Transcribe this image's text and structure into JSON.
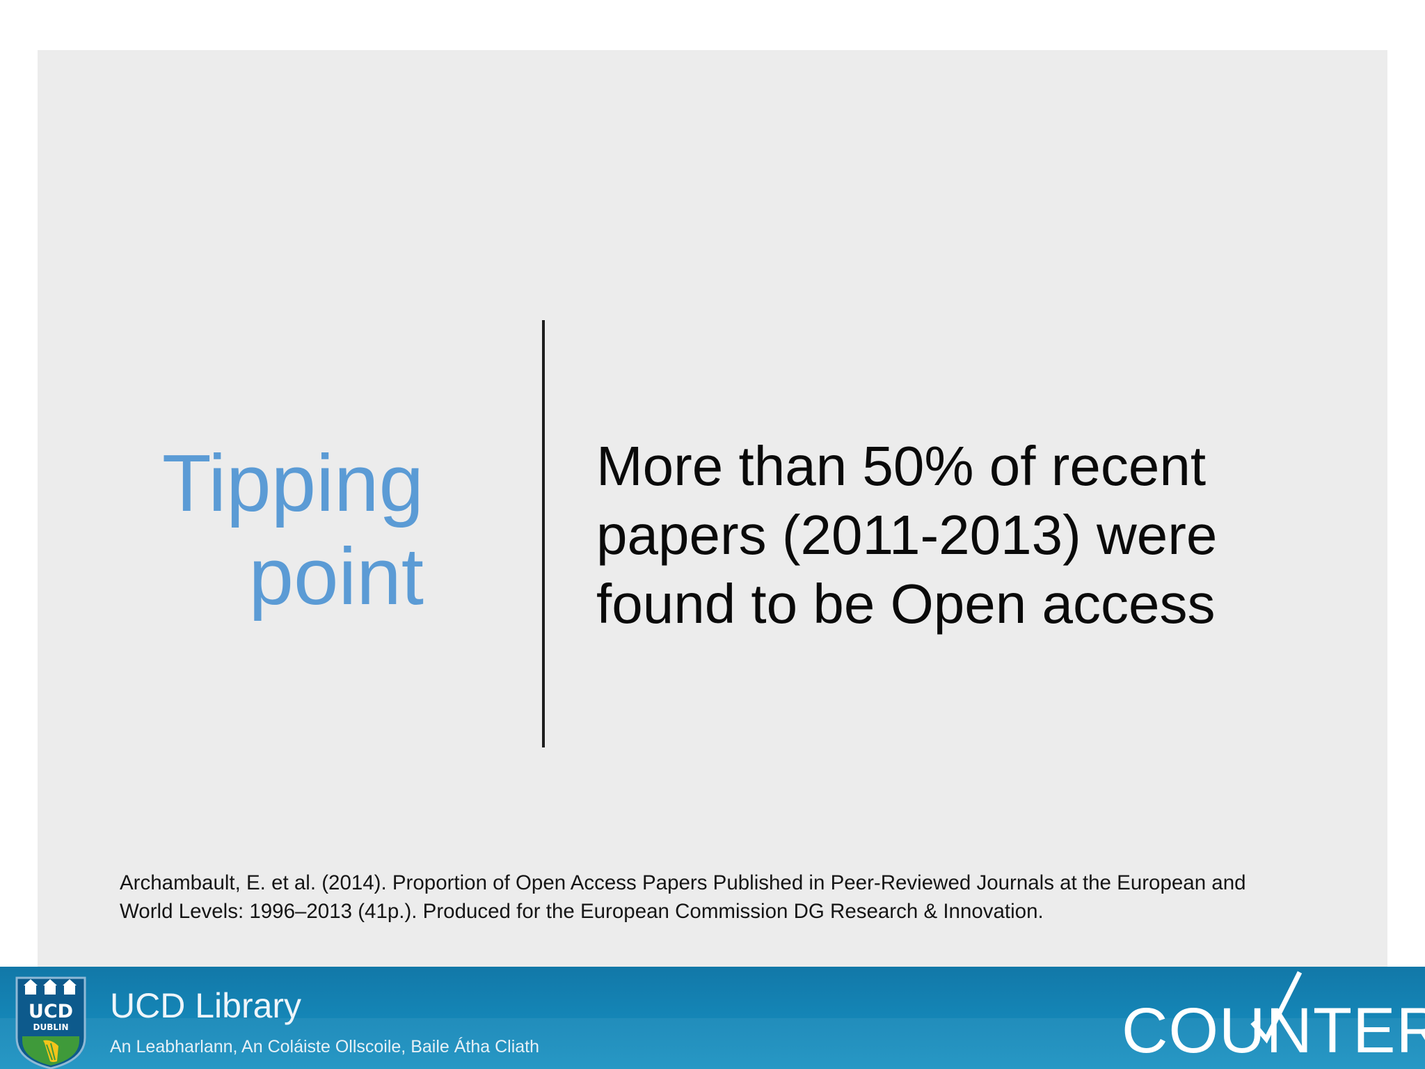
{
  "slide": {
    "title_line1": "Tipping",
    "title_line2": "point",
    "statement_line1": "More than 50% of recent",
    "statement_line2": "papers (2011-2013) were",
    "statement_line3": "found to be Open access",
    "citation_line1": "Archambault, E. et al. (2014). Proportion of Open Access Papers Published in Peer-Reviewed Journals at the European and",
    "citation_line2": "World Levels: 1996–2013 (41p.). Produced for the European Commission DG Research & Innovation."
  },
  "footer": {
    "crest_text": "UCD",
    "crest_subtext": "DUBLIN",
    "library_name": "UCD Library",
    "library_subtitle": "An Leabharlann, An Coláiste Ollscoile, Baile Átha Cliath",
    "partner_logo_text": "COUNTER",
    "crest_icon": "ucd-crest-icon",
    "counter_icon": "checkmark-icon"
  },
  "colors": {
    "title": "#5b9bd5",
    "slide_background": "#ececec",
    "footer_background": "#1587b8"
  }
}
